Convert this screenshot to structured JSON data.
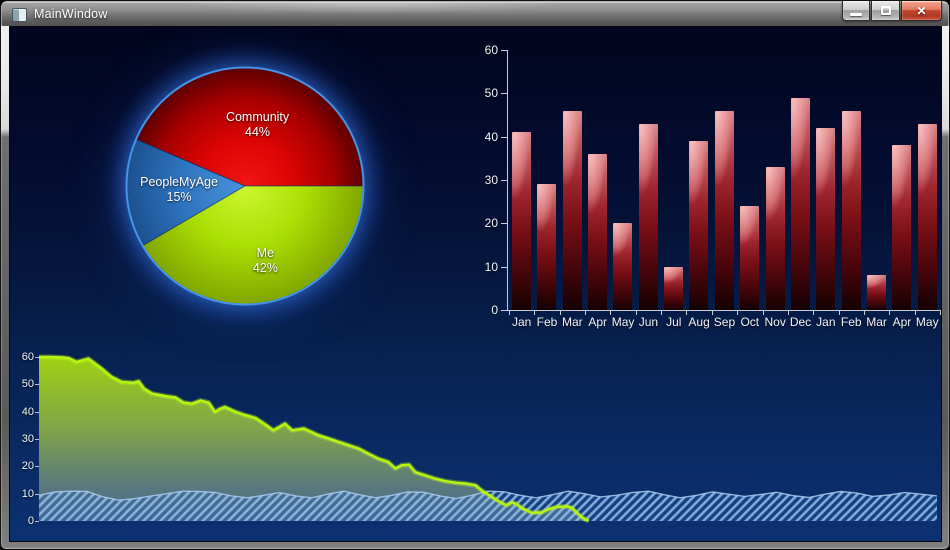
{
  "window": {
    "title": "MainWindow",
    "controls": {
      "minimize_label": "minimize",
      "maximize_label": "maximize",
      "close_label": "close",
      "close_glyph": "✕"
    }
  },
  "colors": {
    "background_top": "#02051d",
    "background_bottom": "#0c3172",
    "pie_outline": "#4d9ef5",
    "axis": "#c9cdd6",
    "label_text": "#ffffff",
    "bar_red": "#a02630",
    "area_green_line": "#b8f311",
    "area_hatch_blue": "#96c6f0"
  },
  "chart_data": [
    {
      "id": "pie-chart",
      "type": "pie",
      "direction": "ccw",
      "start_angle_deg": 0,
      "slices": [
        {
          "label": "Community",
          "percent_label": "44%",
          "value": 44,
          "color": "#dd0404",
          "gradient": [
            [
              "0",
              "#f21616"
            ],
            [
              "0.4",
              "#dc0404"
            ],
            [
              "0.75",
              "#a50000"
            ],
            [
              "1",
              "#5e0000"
            ]
          ]
        },
        {
          "label": "PeopleMyAge",
          "percent_label": "15%",
          "value": 15,
          "color": "#2e74c0",
          "gradient": [
            [
              "0",
              "#4a92dc"
            ],
            [
              "0.55",
              "#2e74c0"
            ],
            [
              "1",
              "#1c5190"
            ]
          ]
        },
        {
          "label": "Me",
          "percent_label": "42%",
          "value": 42,
          "color": "#abe004",
          "gradient": [
            [
              "0",
              "#ccf632"
            ],
            [
              "0.5",
              "#abe004"
            ],
            [
              "1",
              "#82a600"
            ]
          ]
        }
      ]
    },
    {
      "id": "bar-chart",
      "type": "bar",
      "categories": [
        "Jan",
        "Feb",
        "Mar",
        "Apr",
        "May",
        "Jun",
        "Jul",
        "Aug",
        "Sep",
        "Oct",
        "Nov",
        "Dec",
        "Jan",
        "Feb",
        "Mar",
        "Apr",
        "May"
      ],
      "values": [
        41,
        29,
        46,
        36,
        20,
        43,
        10,
        39,
        46,
        24,
        33,
        49,
        42,
        46,
        8,
        38,
        43
      ],
      "ylim": [
        0,
        60
      ],
      "ytick_step": 10,
      "grid": false,
      "bar_color": "#a02630"
    },
    {
      "id": "area-chart",
      "type": "area",
      "ylim": [
        0,
        60
      ],
      "ytick_step": 10,
      "grid": false,
      "series": [
        {
          "name": "green-area",
          "style": "solid-gradient",
          "line_color": "#b8f311",
          "points": [
            [
              0.0,
              60
            ],
            [
              0.014,
              60
            ],
            [
              0.026,
              59.8
            ],
            [
              0.033,
              59.6
            ],
            [
              0.042,
              58.2
            ],
            [
              0.055,
              59.4
            ],
            [
              0.07,
              55.7
            ],
            [
              0.081,
              52.7
            ],
            [
              0.092,
              50.9
            ],
            [
              0.105,
              50.6
            ],
            [
              0.111,
              51.1
            ],
            [
              0.117,
              48.4
            ],
            [
              0.126,
              46.6
            ],
            [
              0.141,
              45.7
            ],
            [
              0.152,
              45.2
            ],
            [
              0.161,
              43.3
            ],
            [
              0.17,
              42.9
            ],
            [
              0.18,
              44.1
            ],
            [
              0.189,
              43.3
            ],
            [
              0.196,
              39.9
            ],
            [
              0.202,
              41.1
            ],
            [
              0.207,
              41.7
            ],
            [
              0.219,
              39.9
            ],
            [
              0.23,
              38.7
            ],
            [
              0.241,
              37.7
            ],
            [
              0.252,
              35.3
            ],
            [
              0.261,
              33.2
            ],
            [
              0.274,
              35.6
            ],
            [
              0.282,
              33.2
            ],
            [
              0.295,
              33.8
            ],
            [
              0.311,
              31.4
            ],
            [
              0.323,
              30.1
            ],
            [
              0.334,
              28.9
            ],
            [
              0.345,
              27.7
            ],
            [
              0.356,
              26.5
            ],
            [
              0.367,
              24.6
            ],
            [
              0.378,
              22.8
            ],
            [
              0.389,
              21.6
            ],
            [
              0.397,
              19.2
            ],
            [
              0.404,
              20.4
            ],
            [
              0.412,
              20.6
            ],
            [
              0.419,
              17.9
            ],
            [
              0.43,
              16.7
            ],
            [
              0.441,
              15.5
            ],
            [
              0.452,
              14.6
            ],
            [
              0.464,
              14.0
            ],
            [
              0.475,
              13.7
            ],
            [
              0.486,
              13.1
            ],
            [
              0.493,
              11.2
            ],
            [
              0.504,
              8.8
            ],
            [
              0.516,
              6.4
            ],
            [
              0.521,
              5.8
            ],
            [
              0.527,
              6.8
            ],
            [
              0.532,
              6.2
            ],
            [
              0.538,
              4.6
            ],
            [
              0.549,
              3.0
            ],
            [
              0.56,
              3.2
            ],
            [
              0.568,
              4.4
            ],
            [
              0.577,
              5.2
            ],
            [
              0.588,
              5.3
            ],
            [
              0.593,
              4.9
            ],
            [
              0.599,
              3.0
            ],
            [
              0.605,
              1.2
            ],
            [
              0.612,
              0.0
            ]
          ]
        },
        {
          "name": "hatched-area",
          "style": "diagonal-hatch",
          "line_color": "#a9cdf0",
          "x_start_frac": 0,
          "x_end_frac": 1,
          "values": [
            9.4,
            10.6,
            10.9,
            10.8,
            8.8,
            7.6,
            8.2,
            9.2,
            10.0,
            10.9,
            10.8,
            10.4,
            9.2,
            8.5,
            9.4,
            10.4,
            9.2,
            8.5,
            9.8,
            10.9,
            9.6,
            8.5,
            9.4,
            10.6,
            10.5,
            9.2,
            8.2,
            9.4,
            10.9,
            10.7,
            9.4,
            8.5,
            9.6,
            10.9,
            10.0,
            8.8,
            9.4,
            10.4,
            10.9,
            9.6,
            8.5,
            9.4,
            10.6,
            9.8,
            9.0,
            9.7,
            10.5,
            9.3,
            8.6,
            9.8,
            10.8,
            10.2,
            9.0,
            9.5,
            10.4,
            9.8,
            9.2
          ]
        }
      ]
    }
  ]
}
